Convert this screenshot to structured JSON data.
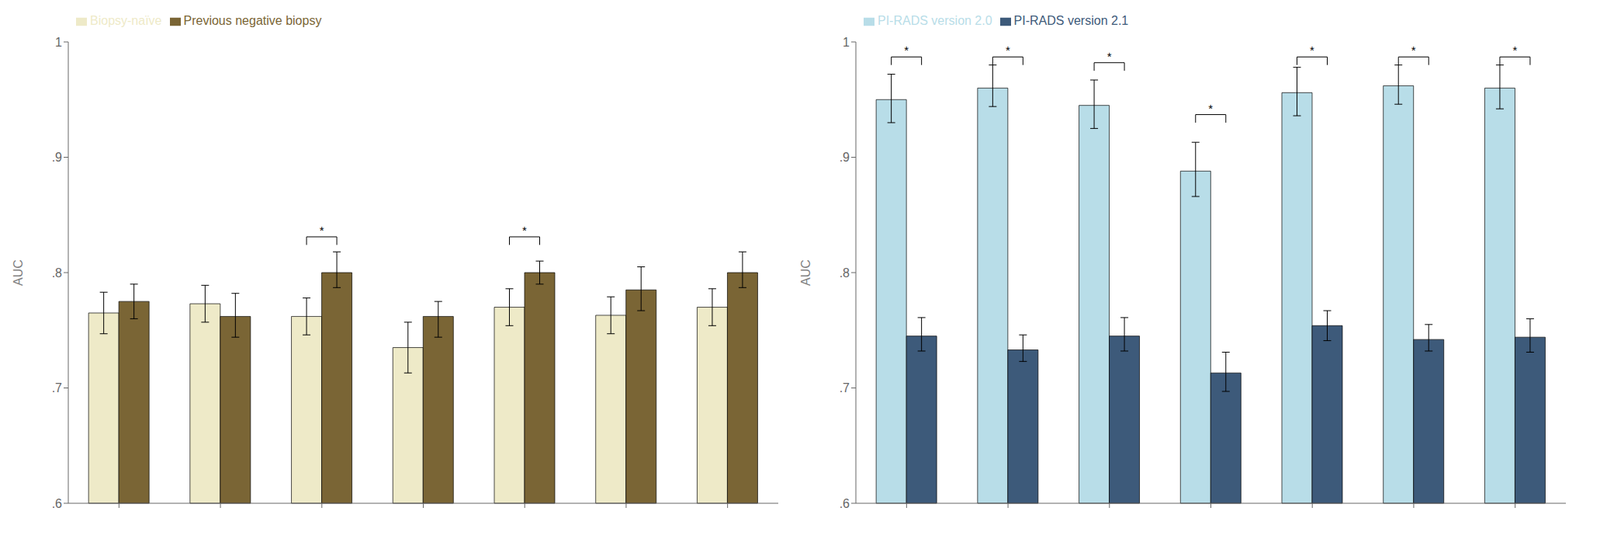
{
  "chart_data": [
    {
      "type": "bar",
      "ylabel": "AUC",
      "categories": [
        null,
        null,
        null,
        null,
        null,
        null,
        null
      ],
      "series": [
        {
          "name": "Biopsy-naïve",
          "color": "#eeeac8",
          "values": [
            0.765,
            0.773,
            0.762,
            0.735,
            0.77,
            0.763,
            0.77
          ],
          "errors_low": [
            0.018,
            0.016,
            0.016,
            0.022,
            0.016,
            0.016,
            0.016
          ],
          "errors_high": [
            0.018,
            0.016,
            0.016,
            0.022,
            0.016,
            0.016,
            0.016
          ]
        },
        {
          "name": "Previous negative biopsy",
          "color": "#7a6535",
          "values": [
            0.775,
            0.762,
            0.8,
            0.762,
            0.8,
            0.785,
            0.8
          ],
          "errors_low": [
            0.015,
            0.018,
            0.013,
            0.018,
            0.01,
            0.018,
            0.013
          ],
          "errors_high": [
            0.015,
            0.02,
            0.018,
            0.013,
            0.01,
            0.02,
            0.018
          ]
        }
      ],
      "ylim": [
        0.6,
        1.0
      ],
      "yticks": [
        {
          "value": 0.6,
          "label": ".6"
        },
        {
          "value": 0.7,
          "label": ".7"
        },
        {
          "value": 0.8,
          "label": ".8"
        },
        {
          "value": 0.9,
          "label": ".9"
        },
        {
          "value": 1.0,
          "label": "1"
        }
      ],
      "legend": "upper left",
      "grid": false,
      "annotations": [
        {
          "category": 2,
          "y": 0.824,
          "text": "*"
        },
        {
          "category": 4,
          "y": 0.824,
          "text": "*"
        }
      ]
    },
    {
      "type": "bar",
      "ylabel": "AUC",
      "categories": [
        null,
        null,
        null,
        null,
        null,
        null,
        null
      ],
      "series": [
        {
          "name": "PI-RADS version 2.0",
          "color": "#b8dde8",
          "values": [
            0.95,
            0.96,
            0.945,
            0.888,
            0.956,
            0.962,
            0.96
          ],
          "errors_low": [
            0.02,
            0.016,
            0.02,
            0.022,
            0.02,
            0.016,
            0.018
          ],
          "errors_high": [
            0.022,
            0.02,
            0.022,
            0.025,
            0.022,
            0.018,
            0.02
          ]
        },
        {
          "name": "PI-RADS version 2.1",
          "color": "#3d5a7a",
          "values": [
            0.745,
            0.733,
            0.745,
            0.713,
            0.754,
            0.742,
            0.744
          ],
          "errors_low": [
            0.013,
            0.01,
            0.013,
            0.016,
            0.013,
            0.01,
            0.013
          ],
          "errors_high": [
            0.016,
            0.013,
            0.016,
            0.018,
            0.013,
            0.013,
            0.016
          ]
        }
      ],
      "ylim": [
        0.6,
        1.0
      ],
      "yticks": [
        {
          "value": 0.6,
          "label": ".6"
        },
        {
          "value": 0.7,
          "label": ".7"
        },
        {
          "value": 0.8,
          "label": ".8"
        },
        {
          "value": 0.9,
          "label": ".9"
        },
        {
          "value": 1.0,
          "label": "1"
        }
      ],
      "legend": "upper left",
      "grid": false,
      "annotations": [
        {
          "category": 0,
          "y": 0.98,
          "text": "*"
        },
        {
          "category": 1,
          "y": 0.98,
          "text": "*"
        },
        {
          "category": 2,
          "y": 0.975,
          "text": "*"
        },
        {
          "category": 3,
          "y": 0.93,
          "text": "*"
        },
        {
          "category": 4,
          "y": 0.98,
          "text": "*"
        },
        {
          "category": 5,
          "y": 0.98,
          "text": "*"
        },
        {
          "category": 6,
          "y": 0.98,
          "text": "*"
        }
      ]
    }
  ]
}
